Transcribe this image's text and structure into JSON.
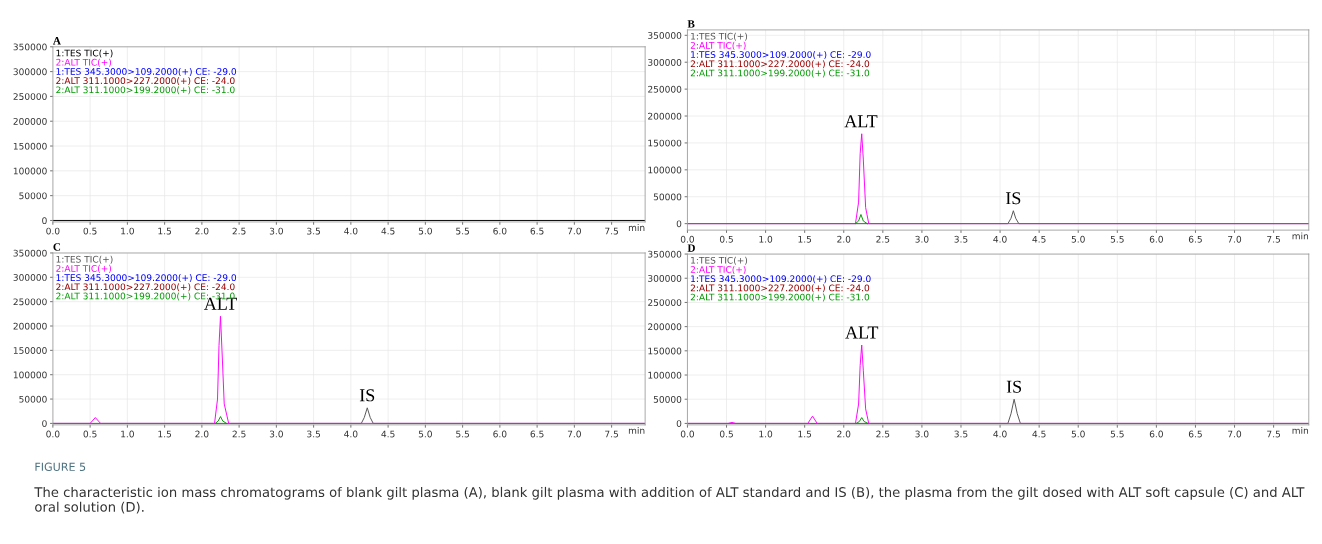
{
  "chart_data": [
    {
      "type": "line",
      "title": "A",
      "xlabel": "min",
      "xlim": [
        0.0,
        7.95
      ],
      "ylim": [
        -3000,
        350000
      ],
      "xticks": [
        {
          "value": 0,
          "label": "0.0"
        },
        0.5,
        {
          "value": 1,
          "label": "1.0"
        },
        1.5,
        {
          "value": 2,
          "label": "2.0"
        },
        2.5,
        {
          "value": 3,
          "label": "3.0"
        },
        3.5,
        {
          "value": 4,
          "label": "4.0"
        },
        4.5,
        {
          "value": 5,
          "label": "5.0"
        },
        5.5,
        {
          "value": 6,
          "label": "6.0"
        },
        6.5,
        {
          "value": 7,
          "label": "7.0"
        },
        7.5
      ],
      "yticks": [
        0,
        50000,
        100000,
        150000,
        200000,
        250000,
        300000,
        350000
      ],
      "grid": true,
      "legend": "top left",
      "series": [
        {
          "name": "1:TES TIC(+)",
          "color": "#000000",
          "x": [
            0.0,
            7.95
          ],
          "values": [
            0,
            0
          ]
        },
        {
          "name": "2:ALT TIC(+)",
          "color": "#ff00ff"
        },
        {
          "name": "1:TES 345.3000>109.2000(+) CE: -29.0",
          "color": "#0000ff"
        },
        {
          "name": "2:ALT 311.1000>227.2000(+) CE: -24.0",
          "color": "#990000"
        },
        {
          "name": "2:ALT 311.1000>199.2000(+) CE: -31.0",
          "color": "#009900"
        }
      ],
      "annotations": [
        "FIGURE 5",
        "The characteristic ion mass chromatograms of blank gilt plasma (A), blank gilt plasma with addition of ALT standard and IS (B), the plasma from the gilt dosed with ALT soft capsule (C) and ALT oral solution (D)."
      ]
    },
    {
      "type": "line",
      "title": "B",
      "xlabel": "min",
      "xlim": [
        0.0,
        7.95
      ],
      "ylim": [
        -12000,
        360000
      ],
      "xticks": [
        {
          "value": 0,
          "label": "0.0"
        },
        0.5,
        {
          "value": 1,
          "label": "1.0"
        },
        1.5,
        {
          "value": 2,
          "label": "2.0"
        },
        2.5,
        {
          "value": 3,
          "label": "3.0"
        },
        3.5,
        {
          "value": 4,
          "label": "4.0"
        },
        4.5,
        {
          "value": 5,
          "label": "5.0"
        },
        5.5,
        {
          "value": 6,
          "label": "6.0"
        },
        6.5,
        {
          "value": 7,
          "label": "7.0"
        },
        7.5
      ],
      "yticks": [
        0,
        50000,
        100000,
        150000,
        200000,
        250000,
        300000,
        350000
      ],
      "grid": true,
      "legend": "top left",
      "series": [
        {
          "name": "1:TES TIC(+)",
          "color": "#555555",
          "x": [
            0.0,
            4.1,
            4.14,
            4.17,
            4.2,
            4.24,
            7.95
          ],
          "values": [
            0,
            0,
            10000,
            24000,
            10000,
            0,
            0
          ]
        },
        {
          "name": "2:ALT TIC(+)",
          "color": "#ff00ff",
          "x": [
            0.0,
            2.15,
            2.19,
            2.21,
            2.23,
            2.25,
            2.28,
            2.32,
            7.95
          ],
          "values": [
            0,
            0,
            40000,
            130000,
            167000,
            120000,
            30000,
            0,
            0
          ]
        },
        {
          "name": "1:TES 345.3000>109.2000(+) CE: -29.0",
          "color": "#0000ff"
        },
        {
          "name": "2:ALT 311.1000>227.2000(+) CE: -24.0",
          "color": "#990000"
        },
        {
          "name": "2:ALT 311.1000>199.2000(+) CE: -31.0",
          "color": "#009900",
          "x": [
            2.15,
            2.19,
            2.22,
            2.25,
            2.3
          ],
          "values": [
            0,
            5000,
            17000,
            5000,
            0
          ]
        }
      ],
      "annotations": [
        {
          "text": "ALT",
          "x": 2.22,
          "y": 167000
        },
        {
          "text": "IS",
          "x": 4.17,
          "y": 24000
        }
      ]
    },
    {
      "type": "line",
      "title": "C",
      "xlabel": "min",
      "xlim": [
        0.0,
        7.95
      ],
      "ylim": [
        -3000,
        350000
      ],
      "xticks": [
        {
          "value": 0,
          "label": "0.0"
        },
        0.5,
        {
          "value": 1,
          "label": "1.0"
        },
        1.5,
        {
          "value": 2,
          "label": "2.0"
        },
        2.5,
        {
          "value": 3,
          "label": "3.0"
        },
        3.5,
        {
          "value": 4,
          "label": "4.0"
        },
        4.5,
        {
          "value": 5,
          "label": "5.0"
        },
        5.5,
        {
          "value": 6,
          "label": "6.0"
        },
        6.5,
        {
          "value": 7,
          "label": "7.0"
        },
        7.5
      ],
      "yticks": [
        0,
        50000,
        100000,
        150000,
        200000,
        250000,
        300000,
        350000
      ],
      "grid": true,
      "legend": "top left",
      "series": [
        {
          "name": "1:TES TIC(+)",
          "color": "#555555",
          "x": [
            0.0,
            4.14,
            4.18,
            4.22,
            4.26,
            4.3,
            7.95
          ],
          "values": [
            0,
            0,
            12000,
            32000,
            12000,
            0,
            0
          ]
        },
        {
          "name": "2:ALT TIC(+)",
          "color": "#ff00ff",
          "x": [
            0.0,
            0.5,
            0.57,
            0.64,
            2.17,
            2.21,
            2.23,
            2.25,
            2.27,
            2.3,
            2.36,
            7.95
          ],
          "values": [
            0,
            0,
            12000,
            0,
            0,
            50000,
            160000,
            220000,
            150000,
            40000,
            0,
            0
          ]
        },
        {
          "name": "1:TES 345.3000>109.2000(+) CE: -29.0",
          "color": "#0000ff"
        },
        {
          "name": "2:ALT 311.1000>227.2000(+) CE: -24.0",
          "color": "#990000"
        },
        {
          "name": "2:ALT 311.1000>199.2000(+) CE: -31.0",
          "color": "#009900",
          "x": [
            2.18,
            2.22,
            2.25,
            2.28,
            2.33
          ],
          "values": [
            0,
            5000,
            14000,
            5000,
            0
          ]
        }
      ],
      "annotations": [
        {
          "text": "ALT",
          "x": 2.25,
          "y": 220000
        },
        {
          "text": "IS",
          "x": 4.22,
          "y": 32000
        }
      ]
    },
    {
      "type": "line",
      "title": "D",
      "xlabel": "min",
      "xlim": [
        0.0,
        7.95
      ],
      "ylim": [
        -3000,
        350000
      ],
      "xticks": [
        {
          "value": 0,
          "label": "0.0"
        },
        0.5,
        {
          "value": 1,
          "label": "1.0"
        },
        1.5,
        {
          "value": 2,
          "label": "2.0"
        },
        2.5,
        {
          "value": 3,
          "label": "3.0"
        },
        3.5,
        {
          "value": 4,
          "label": "4.0"
        },
        4.5,
        {
          "value": 5,
          "label": "5.0"
        },
        5.5,
        {
          "value": 6,
          "label": "6.0"
        },
        6.5,
        {
          "value": 7,
          "label": "7.0"
        },
        7.5
      ],
      "yticks": [
        0,
        50000,
        100000,
        150000,
        200000,
        250000,
        300000,
        350000
      ],
      "grid": true,
      "legend": "top left",
      "series": [
        {
          "name": "1:TES TIC(+)",
          "color": "#555555",
          "x": [
            0.0,
            4.1,
            4.14,
            4.18,
            4.22,
            4.26,
            7.95
          ],
          "values": [
            0,
            0,
            20000,
            50000,
            20000,
            0,
            0
          ]
        },
        {
          "name": "2:ALT TIC(+)",
          "color": "#ff00ff",
          "x": [
            0.0,
            0.52,
            0.57,
            0.62,
            1.54,
            1.6,
            1.66,
            2.15,
            2.19,
            2.21,
            2.23,
            2.25,
            2.28,
            2.32,
            7.95
          ],
          "values": [
            0,
            0,
            2000,
            0,
            0,
            15000,
            0,
            0,
            40000,
            120000,
            162000,
            110000,
            30000,
            0,
            0
          ]
        },
        {
          "name": "1:TES 345.3000>109.2000(+) CE: -29.0",
          "color": "#0000ff"
        },
        {
          "name": "2:ALT 311.1000>227.2000(+) CE: -24.0",
          "color": "#990000"
        },
        {
          "name": "2:ALT 311.1000>199.2000(+) CE: -31.0",
          "color": "#009900",
          "x": [
            2.16,
            2.2,
            2.23,
            2.26,
            2.31
          ],
          "values": [
            0,
            4000,
            12000,
            4000,
            0
          ]
        }
      ],
      "annotations": [
        {
          "text": "ALT",
          "x": 2.23,
          "y": 162000
        },
        {
          "text": "IS",
          "x": 4.18,
          "y": 50000
        }
      ]
    }
  ]
}
